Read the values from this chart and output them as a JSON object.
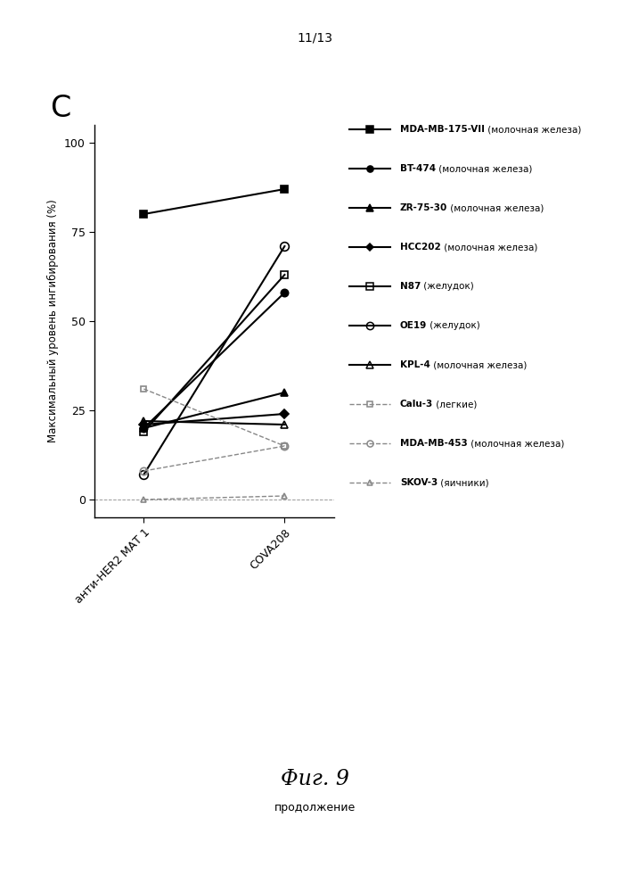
{
  "title_page": "11/13",
  "panel_label": "C",
  "fig_label": "Фиг. 9",
  "fig_sublabel": "продолжение",
  "ylabel": "Максимальный уровень ингибирования (%)",
  "xtick_labels": [
    "анти-HER2 МАТ 1",
    "COVA208"
  ],
  "ylim": [
    -5,
    105
  ],
  "yticks": [
    0,
    25,
    50,
    75,
    100
  ],
  "series": [
    {
      "name": "MDA-MB-175-VII",
      "tissue": " (молочная железа)",
      "values": [
        80,
        87
      ],
      "marker": "s",
      "markersize": 6,
      "color": "#000000",
      "linestyle": "-",
      "linewidth": 1.5,
      "fillstyle": "full"
    },
    {
      "name": "BT-474",
      "tissue": " (молочная железа)",
      "values": [
        20,
        58
      ],
      "marker": "o",
      "markersize": 6,
      "color": "#000000",
      "linestyle": "-",
      "linewidth": 1.5,
      "fillstyle": "full"
    },
    {
      "name": "ZR-75-30",
      "tissue": " (молочная железа)",
      "values": [
        20,
        30
      ],
      "marker": "^",
      "markersize": 6,
      "color": "#000000",
      "linestyle": "-",
      "linewidth": 1.5,
      "fillstyle": "full"
    },
    {
      "name": "HCC202",
      "tissue": " (молочная железа)",
      "values": [
        21,
        24
      ],
      "marker": "D",
      "markersize": 5,
      "color": "#000000",
      "linestyle": "-",
      "linewidth": 1.5,
      "fillstyle": "full"
    },
    {
      "name": "N87",
      "tissue": " (желудок)",
      "values": [
        19,
        63
      ],
      "marker": "s",
      "markersize": 6,
      "color": "#000000",
      "linestyle": "-",
      "linewidth": 1.5,
      "fillstyle": "none"
    },
    {
      "name": "OE19",
      "tissue": " (желудок)",
      "values": [
        7,
        71
      ],
      "marker": "o",
      "markersize": 7,
      "color": "#000000",
      "linestyle": "-",
      "linewidth": 1.5,
      "fillstyle": "none"
    },
    {
      "name": "KPL-4",
      "tissue": " (молочная железа)",
      "values": [
        22,
        21
      ],
      "marker": "^",
      "markersize": 6,
      "color": "#000000",
      "linestyle": "-",
      "linewidth": 1.5,
      "fillstyle": "none"
    },
    {
      "name": "Calu-3",
      "tissue": " (легкие)",
      "values": [
        31,
        15
      ],
      "marker": "s",
      "markersize": 5,
      "color": "#888888",
      "linestyle": "--",
      "linewidth": 1.0,
      "fillstyle": "none"
    },
    {
      "name": "MDA-MB-453",
      "tissue": " (молочная железа)",
      "values": [
        8,
        15
      ],
      "marker": "o",
      "markersize": 6,
      "color": "#888888",
      "linestyle": "--",
      "linewidth": 1.0,
      "fillstyle": "none"
    },
    {
      "name": "SKOV-3",
      "tissue": " (яичники)",
      "values": [
        0,
        1
      ],
      "marker": "^",
      "markersize": 5,
      "color": "#888888",
      "linestyle": "--",
      "linewidth": 1.0,
      "fillstyle": "none"
    }
  ],
  "background_color": "#ffffff"
}
